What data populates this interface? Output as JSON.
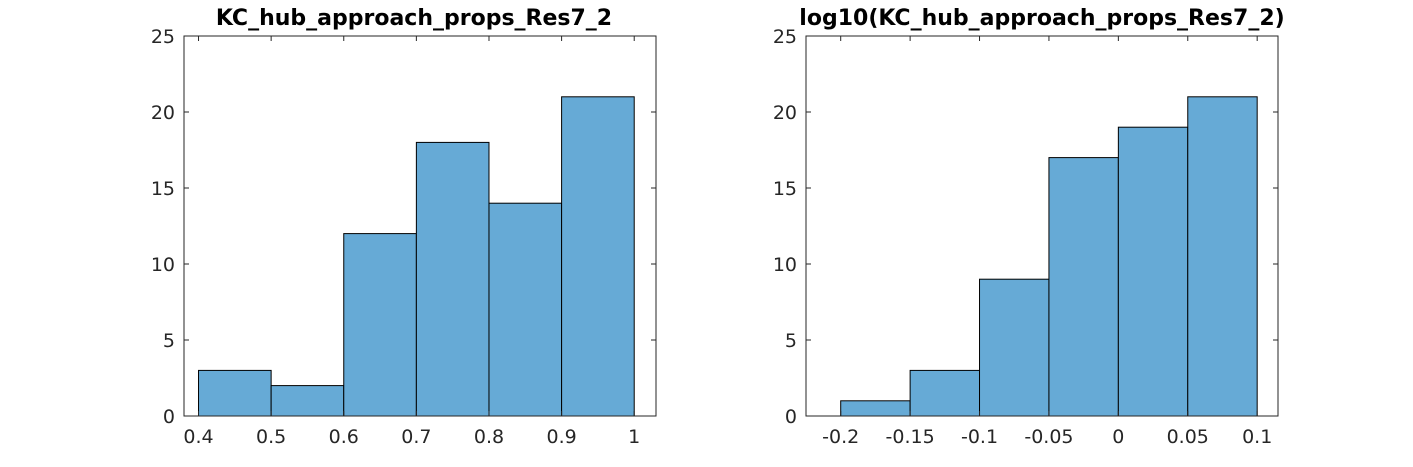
{
  "figure": {
    "background": "#ffffff"
  },
  "chart_data": [
    {
      "type": "bar",
      "title": "KC_hub_approach_props_Res7_2",
      "xlabel": "",
      "ylabel": "",
      "bin_edges": [
        0.4,
        0.5,
        0.6,
        0.7,
        0.8,
        0.9,
        1.0
      ],
      "values": [
        3,
        2,
        12,
        18,
        14,
        21
      ],
      "xlim": [
        0.38,
        1.03
      ],
      "ylim": [
        0,
        25
      ],
      "xticks": [
        0.4,
        0.5,
        0.6,
        0.7,
        0.8,
        0.9,
        1.0
      ],
      "xtick_labels": [
        "0.4",
        "0.5",
        "0.6",
        "0.7",
        "0.8",
        "0.9",
        "1"
      ],
      "yticks": [
        0,
        5,
        10,
        15,
        20,
        25
      ],
      "ytick_labels": [
        "0",
        "5",
        "10",
        "15",
        "20",
        "25"
      ],
      "bar_color": "#66aad6",
      "edge_color": "#000000",
      "grid": false,
      "legend": "none"
    },
    {
      "type": "bar",
      "title": "log10(KC_hub_approach_props_Res7_2)",
      "xlabel": "",
      "ylabel": "",
      "bin_edges": [
        -0.2,
        -0.15,
        -0.1,
        -0.05,
        0,
        0.05,
        0.1
      ],
      "values": [
        1,
        3,
        9,
        17,
        19,
        21
      ],
      "xlim": [
        -0.225,
        0.115
      ],
      "ylim": [
        0,
        25
      ],
      "xticks": [
        -0.2,
        -0.15,
        -0.1,
        -0.05,
        0,
        0.05,
        0.1
      ],
      "xtick_labels": [
        "-0.2",
        "-0.15",
        "-0.1",
        "-0.05",
        "0",
        "0.05",
        "0.1"
      ],
      "yticks": [
        0,
        5,
        10,
        15,
        20,
        25
      ],
      "ytick_labels": [
        "0",
        "5",
        "10",
        "15",
        "20",
        "25"
      ],
      "bar_color": "#66aad6",
      "edge_color": "#000000",
      "grid": false,
      "legend": "none"
    }
  ]
}
